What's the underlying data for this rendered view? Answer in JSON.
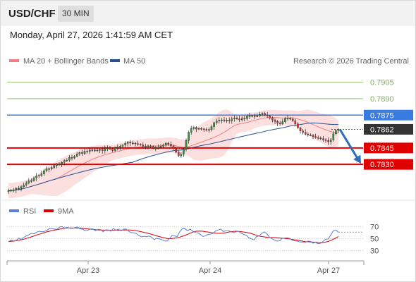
{
  "header": {
    "symbol": "USD/CHF",
    "timeframe": "30 MIN"
  },
  "timestamp": "Monday, April 27, 2026 1:41:59 AM CET",
  "copyright": "Research © 2026 Trading Central",
  "colors": {
    "bollinger_fill": "#fbd4d4",
    "ma20": "#f08080",
    "ma50": "#2a4f8f",
    "up_candle": "#2e9e3e",
    "down_candle": "#d93b3b",
    "resistance": "#7ab648",
    "pivot": "#3a7be0",
    "support": "#e00000",
    "current": "#333333",
    "arrow": "#2f6db5",
    "rsi": "#5b7fd6",
    "rsi_ma": "#d90000"
  },
  "chart_data": [
    {
      "type": "candlestick",
      "legend": [
        {
          "label": "MA 20 + Bollinger Bands",
          "color": "#f08080"
        },
        {
          "label": "MA 50",
          "color": "#2a4f8f"
        }
      ],
      "x_ticks": [
        "Apr 23",
        "Apr 24",
        "Apr 27"
      ],
      "levels": [
        {
          "label": "0.7905",
          "value": 0.7905,
          "kind": "resistance"
        },
        {
          "label": "0.7890",
          "value": 0.789,
          "kind": "resistance"
        },
        {
          "label": "0.7875",
          "value": 0.7875,
          "kind": "pivot"
        },
        {
          "label": "0.7862",
          "value": 0.7862,
          "kind": "current"
        },
        {
          "label": "0.7845",
          "value": 0.7845,
          "kind": "support"
        },
        {
          "label": "0.7830",
          "value": 0.783,
          "kind": "support"
        }
      ],
      "ylim": [
        0.7805,
        0.7917
      ],
      "close": [
        0.7806,
        0.78063,
        0.78066,
        0.78082,
        0.7808,
        0.78096,
        0.78111,
        0.7813,
        0.78148,
        0.78151,
        0.78178,
        0.78193,
        0.78199,
        0.78214,
        0.78242,
        0.78261,
        0.78258,
        0.78271,
        0.78289,
        0.78302,
        0.78304,
        0.78319,
        0.78335,
        0.78339,
        0.78363,
        0.78359,
        0.78374,
        0.78395,
        0.78408,
        0.784,
        0.78419,
        0.78418,
        0.78432,
        0.78431,
        0.78424,
        0.7843,
        0.78435,
        0.78426,
        0.78443,
        0.78448,
        0.78439,
        0.78427,
        0.7845,
        0.7846,
        0.78467,
        0.78477,
        0.78491,
        0.78504,
        0.78495,
        0.78494,
        0.78489,
        0.78484,
        0.78478,
        0.78466,
        0.78465,
        0.78469,
        0.78464,
        0.78448,
        0.78448,
        0.78456,
        0.78466,
        0.78477,
        0.78494,
        0.78484,
        0.78468,
        0.78442,
        0.78411,
        0.78378,
        0.78393,
        0.78442,
        0.78518,
        0.78592,
        0.78627,
        0.78638,
        0.78623,
        0.78628,
        0.78624,
        0.78619,
        0.78618,
        0.78617,
        0.78644,
        0.78681,
        0.78695,
        0.78703,
        0.78706,
        0.78702,
        0.78705,
        0.787,
        0.78716,
        0.78723,
        0.78714,
        0.78707,
        0.7872,
        0.78718,
        0.78737,
        0.78745,
        0.78744,
        0.78742,
        0.78742,
        0.78757,
        0.78765,
        0.78749,
        0.78742,
        0.78725,
        0.78706,
        0.78692,
        0.78677,
        0.7867,
        0.7869,
        0.78718,
        0.78722,
        0.78713,
        0.78699,
        0.7867,
        0.78634,
        0.78605,
        0.78593,
        0.78575,
        0.78567,
        0.78567,
        0.78554,
        0.78544,
        0.7854,
        0.78535,
        0.78525,
        0.78518,
        0.78507,
        0.78524,
        0.78579,
        0.78609,
        0.7862
      ]
    },
    {
      "type": "line",
      "legend": [
        {
          "label": "RSI",
          "color": "#5b7fd6"
        },
        {
          "label": "9MA",
          "color": "#d90000"
        }
      ],
      "y_ticks": [
        "70",
        "50",
        "30"
      ],
      "ylim": [
        20,
        80
      ],
      "rsi": [
        45.0,
        47.5,
        46.4,
        47.1,
        50.9,
        48.7,
        52.4,
        54.6,
        56.5,
        59.0,
        58.1,
        60.8,
        62.3,
        61.5,
        62.0,
        63.6,
        67.0,
        66.8,
        66.0,
        65.4,
        69.5,
        70.0,
        67.9,
        68.8,
        67.4,
        67.1,
        68.6,
        69.5,
        66.4,
        65.9,
        63.4,
        63.9,
        66.3,
        66.2,
        63.1,
        65.7,
        65.2,
        61.5,
        64.8,
        64.6,
        62.3,
        66.9,
        64.0,
        66.0,
        63.0,
        65.8,
        66.1,
        62.2,
        60.1,
        59.6,
        58.3,
        55.1,
        52.9,
        54.1,
        53.1,
        54.3,
        52.3,
        48.6,
        50.7,
        49.5,
        48.2,
        46.2,
        46.0,
        50.0,
        55.7,
        54.3,
        53.7,
        61.9,
        66.6,
        66.7,
        63.2,
        65.9,
        62.7,
        60.3,
        59.7,
        57.1,
        53.7,
        54.5,
        57.0,
        57.5,
        58.7,
        62.7,
        64.5,
        66.0,
        62.0,
        63.0,
        63.3,
        61.6,
        59.9,
        61.5,
        62.4,
        58.8,
        57.1,
        55.7,
        51.3,
        49.5,
        47.9,
        53.5,
        54.5,
        58.8,
        61.3,
        58.3,
        52.8,
        50.0,
        47.6,
        45.9,
        46.2,
        50.5,
        51.1,
        51.3,
        50.3,
        47.1,
        46.3,
        45.8,
        44.5,
        44.4,
        43.8,
        45.8,
        45.8,
        42.2,
        44.0,
        41.4,
        42.1,
        45.4,
        49.1,
        49.3,
        55.9,
        63.2,
        64.2,
        60.8
      ],
      "rsi_ma": [
        45.0,
        45.5,
        45.9,
        46.6,
        47.3,
        48.2,
        49.1,
        50.3,
        51.6,
        53.1,
        54.5,
        56.0,
        57.3,
        58.6,
        60.0,
        61.3,
        62.4,
        63.4,
        64.2,
        65.0,
        65.9,
        66.7,
        67.3,
        67.8,
        67.9,
        67.8,
        67.8,
        67.7,
        67.6,
        67.2,
        66.6,
        66.1,
        65.9,
        65.5,
        64.9,
        64.6,
        64.4,
        64.2,
        64.1,
        64.0,
        63.9,
        63.9,
        64.0,
        64.1,
        64.2,
        64.3,
        64.5,
        64.5,
        64.2,
        63.8,
        63.3,
        62.4,
        61.5,
        60.5,
        59.5,
        58.4,
        57.2,
        55.9,
        54.6,
        53.4,
        52.4,
        51.4,
        50.4,
        49.9,
        50.2,
        50.9,
        51.5,
        52.6,
        54.0,
        55.4,
        57.2,
        59.1,
        60.8,
        62.0,
        62.5,
        62.7,
        62.3,
        61.7,
        61.0,
        60.2,
        59.6,
        59.1,
        58.8,
        58.9,
        59.3,
        60.0,
        60.9,
        61.7,
        62.1,
        62.3,
        62.0,
        61.6,
        61.1,
        60.4,
        59.6,
        58.4,
        57.0,
        55.6,
        54.4,
        53.5,
        52.9,
        52.3,
        52.0,
        51.9,
        51.9,
        51.6,
        51.1,
        50.8,
        50.4,
        50.0,
        49.5,
        48.8,
        48.0,
        47.3,
        46.6,
        45.9,
        45.1,
        44.8,
        44.5,
        44.3,
        44.0,
        43.6,
        43.5,
        43.6,
        44.2,
        45.4,
        47.0,
        48.9,
        51.2,
        53.7
      ]
    }
  ]
}
